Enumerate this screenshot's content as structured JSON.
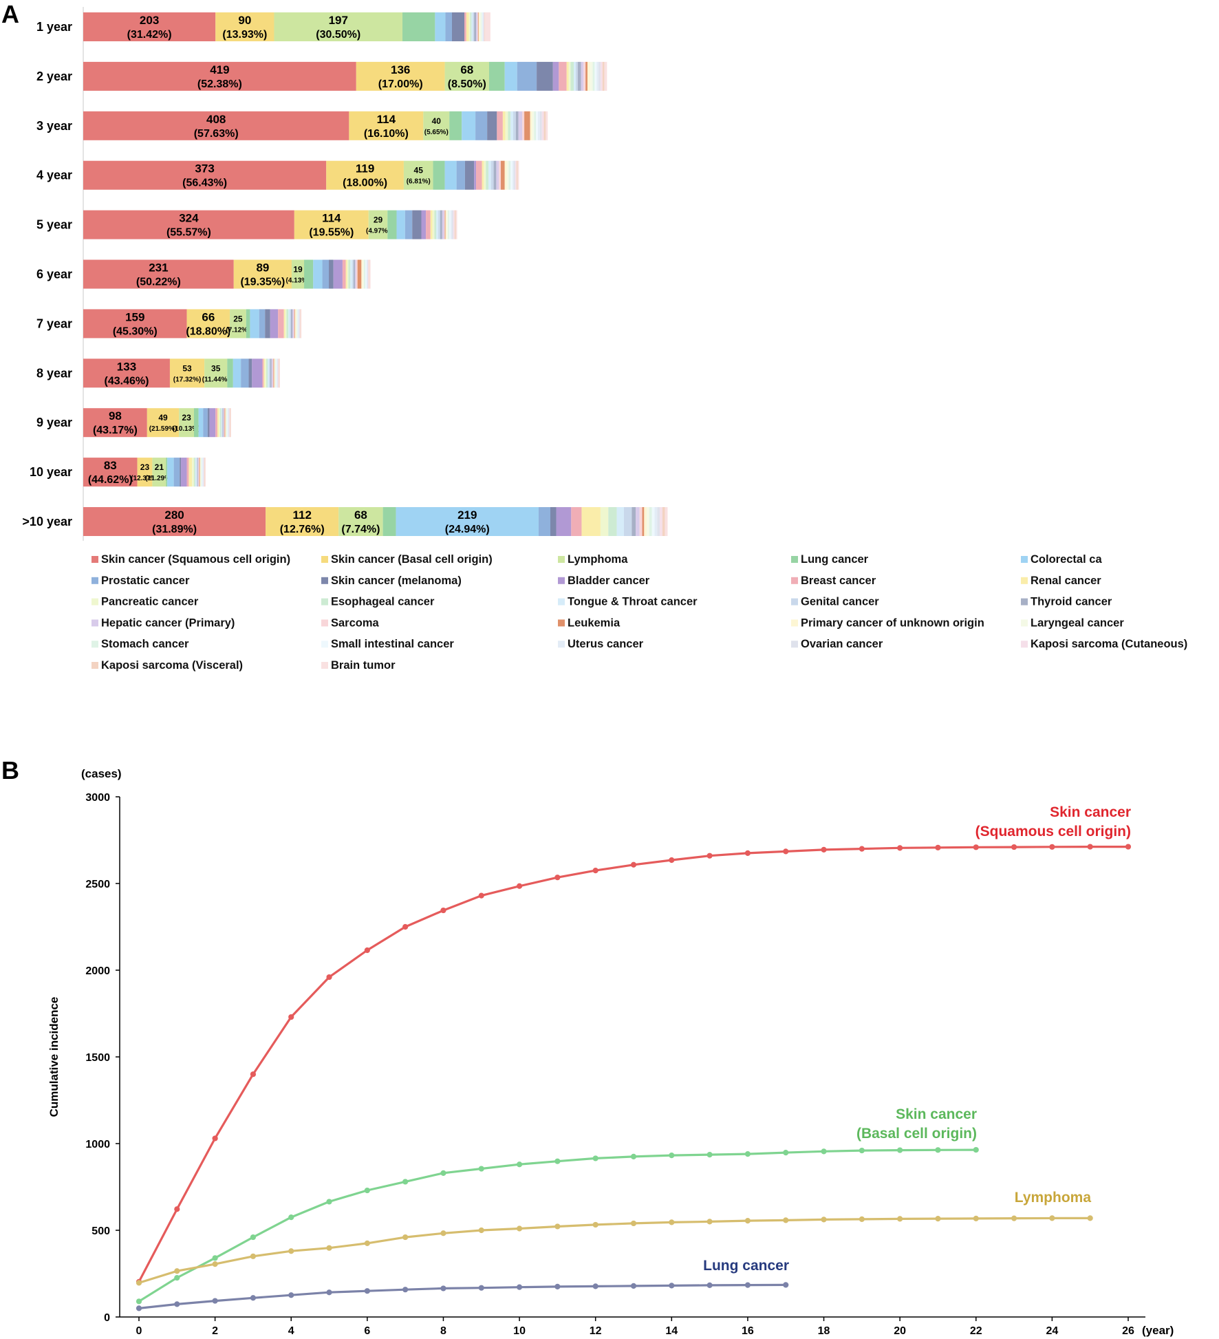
{
  "panel_a": {
    "letter": "A"
  },
  "panel_b": {
    "letter": "B"
  },
  "legend_colors": [
    "#e47a78",
    "#f6db7e",
    "#cde6a0",
    "#97d4a4",
    "#9fd3f3",
    "#8fb1dc",
    "#7d87ab",
    "#b199d4",
    "#f0aeb6",
    "#faedaa",
    "#eff7cf",
    "#cdebd3",
    "#d6ecf9",
    "#c9d8eb",
    "#a7b0c6",
    "#d8cbea",
    "#f8d6d9",
    "#e0906a",
    "#fdf6d4",
    "#f4f9e6",
    "#dff3e6",
    "#eef8fd",
    "#e3ecf6",
    "#dfe2ec",
    "#f5dfe9",
    "#f3d3c2",
    "#f9e1e1"
  ],
  "chart_data": [
    {
      "type": "bar",
      "orientation": "horizontal",
      "stacked": true,
      "title": "",
      "categories": [
        "1 year",
        "2 year",
        "3 year",
        "4 year",
        "5 year",
        "6 year",
        "7 year",
        "8 year",
        "9 year",
        "10 year",
        ">10 year"
      ],
      "legend": {
        "placement": "bottom",
        "entries": [
          "Skin cancer (Squamous cell origin)",
          "Skin cancer (Basal cell origin)",
          "Lymphoma",
          "Lung cancer",
          "Colorectal ca",
          "Prostatic cancer",
          "Skin cancer (melanoma)",
          "Bladder cancer",
          "Breast cancer",
          "Renal cancer",
          "Pancreatic cancer",
          "Esophageal cancer",
          "Tongue & Throat cancer",
          "Genital cancer",
          "Thyroid cancer",
          "Hepatic cancer (Primary)",
          "Sarcoma",
          "Leukemia",
          "Primary cancer of unknown origin",
          "Laryngeal cancer",
          "Stomach cancer",
          "Small intestinal cancer",
          "Uterus cancer",
          "Ovarian cancer",
          "Kaposi sarcoma (Cutaneous)",
          "Kaposi sarcoma (Visceral)",
          "Brain tumor"
        ]
      },
      "rows": [
        {
          "label": "1 year",
          "segments": [
            203,
            90,
            197,
            50,
            16,
            10,
            19,
            0,
            3,
            4,
            2,
            2,
            2,
            2,
            3,
            2,
            1,
            1,
            2,
            2,
            1,
            1,
            1,
            1,
            1,
            1,
            8
          ],
          "labels": [
            {
              "v": "203",
              "p": "(31.42%)"
            },
            {
              "v": "90",
              "p": "(13.93%)"
            },
            {
              "v": "197",
              "p": "(30.50%)"
            }
          ]
        },
        {
          "label": "2 year",
          "segments": [
            419,
            136,
            68,
            24,
            19,
            30,
            25,
            9,
            12,
            3,
            3,
            5,
            3,
            3,
            5,
            4,
            3,
            3,
            4,
            4,
            3,
            3,
            3,
            3,
            3,
            3,
            4
          ],
          "labels": [
            {
              "v": "419",
              "p": "(52.38%)"
            },
            {
              "v": "136",
              "p": "(17.00%)"
            },
            {
              "v": "68",
              "p": "(8.50%)"
            }
          ]
        },
        {
          "label": "3 year",
          "segments": [
            408,
            114,
            40,
            19,
            21,
            18,
            15,
            0,
            9,
            4,
            4,
            4,
            4,
            4,
            4,
            6,
            3,
            9,
            3,
            3,
            3,
            3,
            3,
            3,
            3,
            3,
            3
          ],
          "labels": [
            {
              "v": "408",
              "p": "(57.63%)"
            },
            {
              "v": "114",
              "p": "(16.10%)"
            },
            {
              "v": "40",
              "p": "(5.65%)"
            }
          ]
        },
        {
          "label": "4 year",
          "segments": [
            373,
            119,
            45,
            18,
            18,
            13,
            14,
            3,
            9,
            3,
            3,
            4,
            4,
            4,
            4,
            4,
            3,
            6,
            3,
            3,
            3,
            3,
            2,
            2,
            2,
            2,
            2
          ],
          "labels": [
            {
              "v": "373",
              "p": "(56.43%)"
            },
            {
              "v": "119",
              "p": "(18.00%)"
            },
            {
              "v": "45",
              "p": "(6.81%)"
            }
          ]
        },
        {
          "label": "5 year",
          "segments": [
            324,
            114,
            29,
            14,
            13,
            11,
            14,
            7,
            7,
            3,
            3,
            3,
            3,
            3,
            3,
            3,
            1,
            1,
            2,
            2,
            2,
            2,
            2,
            2,
            2,
            2,
            2
          ],
          "labels": [
            {
              "v": "324",
              "p": "(55.57%)"
            },
            {
              "v": "114",
              "p": "(19.55%)"
            },
            {
              "v": "29",
              "p": "(4.97%)"
            }
          ]
        },
        {
          "label": "6 year",
          "segments": [
            231,
            89,
            19,
            14,
            14,
            10,
            7,
            14,
            5,
            2,
            2,
            3,
            3,
            2,
            2,
            2,
            2,
            6,
            2,
            2,
            2,
            2,
            1,
            1,
            1,
            1,
            2
          ],
          "labels": [
            {
              "v": "231",
              "p": "(50.22%)"
            },
            {
              "v": "89",
              "p": "(19.35%)"
            },
            {
              "v": "19",
              "p": "(4.13%)"
            }
          ]
        },
        {
          "label": "7 year",
          "segments": [
            159,
            66,
            25,
            6,
            14,
            9,
            8,
            12,
            9,
            2,
            2,
            3,
            2,
            2,
            2,
            2,
            1,
            1,
            2,
            1,
            1,
            1,
            1,
            1,
            1,
            1,
            1
          ],
          "labels": [
            {
              "v": "159",
              "p": "(45.30%)"
            },
            {
              "v": "66",
              "p": "(18.80%)"
            },
            {
              "v": "25",
              "p": "(7.12%)"
            }
          ]
        },
        {
          "label": "8 year",
          "segments": [
            133,
            53,
            35,
            9,
            12,
            12,
            5,
            16,
            2,
            2,
            2,
            2,
            2,
            2,
            2,
            2,
            1,
            1,
            1,
            1,
            1,
            1,
            1,
            1,
            1,
            1,
            1
          ],
          "labels": [
            {
              "v": "133",
              "p": "(43.46%)"
            },
            {
              "v": "53",
              "p": "(17.32%)"
            },
            {
              "v": "35",
              "p": "(11.44%)"
            }
          ]
        },
        {
          "label": "9 year",
          "segments": [
            98,
            49,
            23,
            7,
            7,
            7,
            3,
            9,
            3,
            2,
            2,
            2,
            1,
            1,
            1,
            1,
            1,
            1,
            1,
            1,
            1,
            1,
            1,
            1,
            1,
            1,
            1
          ],
          "labels": [
            {
              "v": "98",
              "p": "(43.17%)"
            },
            {
              "v": "49",
              "p": "(21.59%)"
            },
            {
              "v": "23",
              "p": "(10.13%)"
            }
          ]
        },
        {
          "label": "10 year",
          "segments": [
            83,
            23,
            21,
            2,
            10,
            9,
            2,
            9,
            3,
            5,
            3,
            2,
            2,
            1,
            1,
            1,
            1,
            1,
            1,
            1,
            1,
            1,
            1,
            1,
            1,
            1,
            1
          ],
          "labels": [
            {
              "v": "83",
              "p": "(44.62%)"
            },
            {
              "v": "23",
              "p": "(12.37%)"
            },
            {
              "v": "21",
              "p": "(11.29%)"
            }
          ]
        },
        {
          "label": ">10 year",
          "segments": [
            280,
            112,
            68,
            20,
            219,
            18,
            9,
            23,
            16,
            29,
            12,
            13,
            11,
            12,
            6,
            6,
            4,
            3,
            4,
            4,
            4,
            4,
            4,
            4,
            4,
            4,
            4
          ],
          "labels": [
            {
              "v": "280",
              "p": "(31.89%)"
            },
            {
              "v": "112",
              "p": "(12.76%)"
            },
            {
              "v": "68",
              "p": "(7.74%)"
            },
            null,
            {
              "v": "219",
              "p": "(24.94%)"
            }
          ]
        }
      ]
    },
    {
      "type": "line",
      "title": "",
      "ylabel": "Cumulative incidence",
      "yunit": "(cases)",
      "xunit": "(year)",
      "xlim": [
        0,
        26
      ],
      "ylim": [
        0,
        3000
      ],
      "xticks": [
        0,
        2,
        4,
        6,
        8,
        10,
        12,
        14,
        16,
        18,
        20,
        22,
        24,
        26
      ],
      "yticks": [
        0,
        500,
        1000,
        1500,
        2000,
        2500,
        3000
      ],
      "grid": false,
      "series": [
        {
          "name": "Skin cancer",
          "name_line2": "(Squamous cell origin)",
          "color": "#e55b5b",
          "label_color": "#e0262e",
          "x": [
            0,
            1,
            2,
            3,
            4,
            5,
            6,
            7,
            8,
            9,
            10,
            11,
            12,
            13,
            14,
            15,
            16,
            17,
            18,
            19,
            20,
            21,
            22,
            23,
            24,
            25,
            26
          ],
          "y": [
            203,
            622,
            1030,
            1400,
            1730,
            1960,
            2115,
            2250,
            2345,
            2430,
            2485,
            2535,
            2575,
            2608,
            2635,
            2660,
            2675,
            2685,
            2695,
            2700,
            2705,
            2707,
            2709,
            2710,
            2711,
            2712,
            2712
          ]
        },
        {
          "name": "Skin cancer",
          "name_line2": "(Basal cell origin)",
          "color": "#7fd490",
          "label_color": "#5cb85c",
          "x": [
            0,
            1,
            2,
            3,
            4,
            5,
            6,
            7,
            8,
            9,
            10,
            11,
            12,
            13,
            14,
            15,
            16,
            17,
            18,
            19,
            20,
            21,
            22
          ],
          "y": [
            90,
            226,
            340,
            460,
            575,
            665,
            730,
            780,
            830,
            855,
            880,
            898,
            915,
            925,
            932,
            936,
            940,
            948,
            955,
            960,
            962,
            963,
            964
          ]
        },
        {
          "name": "Lymphoma",
          "name_line2": "",
          "color": "#d6bd6e",
          "label_color": "#c8a63a",
          "x": [
            0,
            1,
            2,
            3,
            4,
            5,
            6,
            7,
            8,
            9,
            10,
            11,
            12,
            13,
            14,
            15,
            16,
            17,
            18,
            19,
            20,
            21,
            22,
            23,
            24,
            25
          ],
          "y": [
            197,
            265,
            305,
            350,
            380,
            398,
            425,
            460,
            483,
            500,
            510,
            522,
            532,
            540,
            546,
            550,
            555,
            558,
            562,
            564,
            566,
            567,
            568,
            569,
            570,
            570
          ]
        },
        {
          "name": "Lung cancer",
          "name_line2": "",
          "color": "#7b82a8",
          "label_color": "#263a7e",
          "x": [
            0,
            1,
            2,
            3,
            4,
            5,
            6,
            7,
            8,
            9,
            10,
            11,
            12,
            13,
            14,
            15,
            16,
            17
          ],
          "y": [
            50,
            74,
            93,
            110,
            126,
            142,
            150,
            158,
            165,
            168,
            172,
            175,
            177,
            179,
            181,
            183,
            184,
            185
          ]
        }
      ]
    }
  ]
}
